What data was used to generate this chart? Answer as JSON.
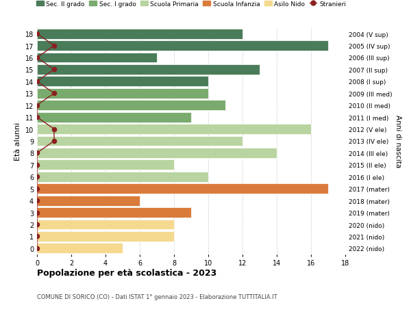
{
  "ages": [
    18,
    17,
    16,
    15,
    14,
    13,
    12,
    11,
    10,
    9,
    8,
    7,
    6,
    5,
    4,
    3,
    2,
    1,
    0
  ],
  "right_labels": [
    "2004 (V sup)",
    "2005 (IV sup)",
    "2006 (III sup)",
    "2007 (II sup)",
    "2008 (I sup)",
    "2009 (III med)",
    "2010 (II med)",
    "2011 (I med)",
    "2012 (V ele)",
    "2013 (IV ele)",
    "2014 (III ele)",
    "2015 (II ele)",
    "2016 (I ele)",
    "2017 (mater)",
    "2018 (mater)",
    "2019 (mater)",
    "2020 (nido)",
    "2021 (nido)",
    "2022 (nido)"
  ],
  "bar_values": [
    12,
    17,
    7,
    13,
    10,
    10,
    11,
    9,
    16,
    12,
    14,
    8,
    10,
    17,
    6,
    9,
    8,
    8,
    5
  ],
  "bar_colors": [
    "#4a7c59",
    "#4a7c59",
    "#4a7c59",
    "#4a7c59",
    "#4a7c59",
    "#7aab6e",
    "#7aab6e",
    "#7aab6e",
    "#b8d4a0",
    "#b8d4a0",
    "#b8d4a0",
    "#b8d4a0",
    "#b8d4a0",
    "#d97b3a",
    "#d97b3a",
    "#d97b3a",
    "#f5d98e",
    "#f5d98e",
    "#f5d98e"
  ],
  "stranieri_x": [
    0,
    1,
    0,
    1,
    0,
    1,
    0,
    0,
    1,
    1,
    0,
    0,
    0,
    0,
    0,
    0,
    0,
    0,
    0
  ],
  "stranieri_color": "#8b2020",
  "legend_labels": [
    "Sec. II grado",
    "Sec. I grado",
    "Scuola Primaria",
    "Scuola Infanzia",
    "Asilo Nido",
    "Stranieri"
  ],
  "legend_colors": [
    "#4a7c59",
    "#7aab6e",
    "#b8d4a0",
    "#d97b3a",
    "#f5d98e",
    "#8b2020"
  ],
  "ylabel_left": "Età alunni",
  "ylabel_right": "Anni di nascita",
  "title": "Popolazione per età scolastica - 2023",
  "subtitle": "COMUNE DI SORICO (CO) - Dati ISTAT 1° gennaio 2023 - Elaborazione TUTTITALIA.IT",
  "xlim": [
    0,
    18
  ],
  "background_color": "#ffffff",
  "grid_color": "#cccccc"
}
